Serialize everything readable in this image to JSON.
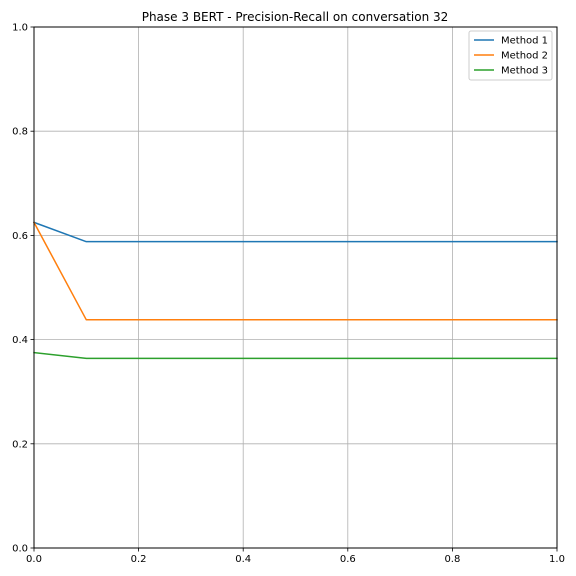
{
  "chart_data": {
    "type": "line",
    "title": "Phase 3 BERT - Precision-Recall on conversation 32",
    "xlabel": "",
    "ylabel": "",
    "xlim": [
      0.0,
      1.0
    ],
    "ylim": [
      0.0,
      1.0
    ],
    "xticks": [
      0.0,
      0.2,
      0.4,
      0.6,
      0.8,
      1.0
    ],
    "yticks": [
      0.0,
      0.2,
      0.4,
      0.6,
      0.8,
      1.0
    ],
    "xtick_labels": [
      "0.0",
      "0.2",
      "0.4",
      "0.6",
      "0.8",
      "1.0"
    ],
    "ytick_labels": [
      "0.0",
      "0.2",
      "0.4",
      "0.6",
      "0.8",
      "1.0"
    ],
    "grid": true,
    "legend_position": "top-right",
    "series": [
      {
        "name": "Method 1",
        "color": "#1f77b4",
        "x": [
          0.0,
          0.1,
          1.0
        ],
        "y": [
          0.625,
          0.588,
          0.588
        ]
      },
      {
        "name": "Method 2",
        "color": "#ff7f0e",
        "x": [
          0.0,
          0.1,
          1.0
        ],
        "y": [
          0.625,
          0.438,
          0.438
        ]
      },
      {
        "name": "Method 3",
        "color": "#2ca02c",
        "x": [
          0.0,
          0.1,
          1.0
        ],
        "y": [
          0.375,
          0.364,
          0.364
        ]
      }
    ]
  }
}
